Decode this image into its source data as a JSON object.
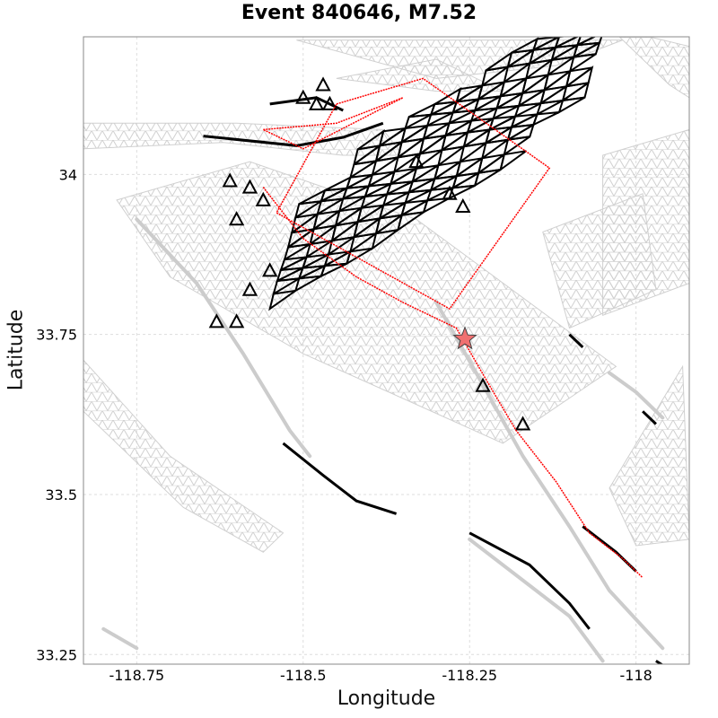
{
  "title": "Event 840646, M7.52",
  "axes": {
    "xlabel": "Longitude",
    "ylabel": "Latitude",
    "xlim": [
      -118.83,
      -117.92
    ],
    "ylim": [
      33.235,
      34.215
    ],
    "xticks": [
      {
        "value": -118.75,
        "label": "-118.75"
      },
      {
        "value": -118.5,
        "label": "-118.5"
      },
      {
        "value": -118.25,
        "label": "-118.25"
      },
      {
        "value": -118.0,
        "label": "-118"
      }
    ],
    "yticks": [
      {
        "value": 34.0,
        "label": "34"
      },
      {
        "value": 33.75,
        "label": "33.75"
      },
      {
        "value": 33.5,
        "label": "33.5"
      },
      {
        "value": 33.25,
        "label": "33.25"
      }
    ],
    "grid": true
  },
  "colors": {
    "mesh": "#d0d0d0",
    "rupture": "#000000",
    "outline": "#ff0000",
    "epicenter": "#f07070"
  },
  "epicenter": {
    "lon": -118.257,
    "lat": 33.743,
    "icon": "star-icon"
  },
  "mesh_patches": [
    [
      [
        -118.51,
        34.21
      ],
      [
        -118.3,
        34.15
      ],
      [
        -118.12,
        34.17
      ],
      [
        -118.02,
        34.21
      ]
    ],
    [
      [
        -118.04,
        34.23
      ],
      [
        -117.95,
        34.14
      ],
      [
        -117.92,
        34.12
      ],
      [
        -117.92,
        34.2
      ]
    ],
    [
      [
        -118.83,
        34.04
      ],
      [
        -118.62,
        34.05
      ],
      [
        -118.44,
        34.03
      ],
      [
        -118.35,
        34.03
      ],
      [
        -118.38,
        34.07
      ],
      [
        -118.6,
        34.08
      ],
      [
        -118.83,
        34.08
      ]
    ],
    [
      [
        -118.78,
        33.96
      ],
      [
        -118.58,
        34.02
      ],
      [
        -118.33,
        33.93
      ],
      [
        -118.03,
        33.7
      ],
      [
        -118.2,
        33.58
      ],
      [
        -118.5,
        33.72
      ],
      [
        -118.7,
        33.84
      ]
    ],
    [
      [
        -118.05,
        34.03
      ],
      [
        -117.92,
        34.07
      ],
      [
        -117.92,
        33.83
      ],
      [
        -118.05,
        33.78
      ]
    ],
    [
      [
        -118.14,
        33.91
      ],
      [
        -117.99,
        33.97
      ],
      [
        -117.97,
        33.82
      ],
      [
        -118.1,
        33.76
      ]
    ],
    [
      [
        -118.83,
        33.63
      ],
      [
        -118.68,
        33.48
      ],
      [
        -118.56,
        33.41
      ],
      [
        -118.53,
        33.44
      ],
      [
        -118.7,
        33.56
      ],
      [
        -118.83,
        33.71
      ]
    ],
    [
      [
        -118.04,
        33.51
      ],
      [
        -117.93,
        33.7
      ],
      [
        -117.92,
        33.43
      ],
      [
        -118.0,
        33.42
      ]
    ],
    [
      [
        -118.45,
        34.15
      ],
      [
        -118.3,
        34.13
      ],
      [
        -118.2,
        34.13
      ],
      [
        -118.3,
        34.18
      ]
    ]
  ],
  "rupture_segments": [
    [
      [
        -118.65,
        34.06
      ],
      [
        -118.51,
        34.045
      ],
      [
        -118.44,
        34.058
      ],
      [
        -118.38,
        34.08
      ]
    ],
    [
      [
        -118.55,
        34.11
      ],
      [
        -118.48,
        34.12
      ],
      [
        -118.44,
        34.1
      ]
    ],
    [
      [
        -118.53,
        33.58
      ],
      [
        -118.47,
        33.53
      ],
      [
        -118.42,
        33.49
      ],
      [
        -118.36,
        33.47
      ]
    ],
    [
      [
        -118.25,
        33.44
      ],
      [
        -118.16,
        33.39
      ],
      [
        -118.1,
        33.33
      ],
      [
        -118.07,
        33.29
      ]
    ],
    [
      [
        -118.08,
        33.45
      ],
      [
        -118.03,
        33.41
      ],
      [
        -118.0,
        33.38
      ]
    ],
    [
      [
        -117.97,
        33.24
      ],
      [
        -117.94,
        33.22
      ]
    ],
    [
      [
        -118.1,
        33.75
      ],
      [
        -118.08,
        33.73
      ]
    ],
    [
      [
        -117.99,
        33.63
      ],
      [
        -117.97,
        33.61
      ]
    ]
  ],
  "gray_traces": [
    [
      [
        -118.75,
        33.93
      ],
      [
        -118.66,
        33.83
      ],
      [
        -118.59,
        33.72
      ],
      [
        -118.52,
        33.6
      ],
      [
        -118.49,
        33.56
      ]
    ],
    [
      [
        -118.3,
        33.8
      ],
      [
        -118.24,
        33.69
      ],
      [
        -118.17,
        33.56
      ],
      [
        -118.1,
        33.45
      ],
      [
        -118.04,
        33.35
      ],
      [
        -117.96,
        33.26
      ]
    ],
    [
      [
        -118.04,
        33.69
      ],
      [
        -118.0,
        33.66
      ],
      [
        -117.96,
        33.62
      ]
    ],
    [
      [
        -118.8,
        33.29
      ],
      [
        -118.75,
        33.26
      ]
    ],
    [
      [
        -118.25,
        33.43
      ],
      [
        -118.1,
        33.31
      ],
      [
        -118.05,
        33.24
      ]
    ]
  ],
  "rupture_patch": {
    "cols": 12,
    "rows": 10,
    "origin": [
      -118.55,
      33.79
    ],
    "u": [
      0.0385,
      0.0245
    ],
    "v": [
      0.0055,
      0.02
    ]
  },
  "red_outlines": [
    [
      [
        -118.45,
        34.11
      ],
      [
        -118.32,
        34.15
      ],
      [
        -118.13,
        34.01
      ],
      [
        -118.28,
        33.79
      ],
      [
        -118.54,
        33.94
      ]
    ],
    [
      [
        -118.56,
        34.07
      ],
      [
        -118.45,
        34.08
      ],
      [
        -118.35,
        34.12
      ],
      [
        -118.5,
        34.04
      ]
    ]
  ],
  "red_trace": [
    [
      -118.56,
      33.98
    ],
    [
      -118.5,
      33.9
    ],
    [
      -118.42,
      33.84
    ],
    [
      -118.35,
      33.8
    ],
    [
      -118.27,
      33.76
    ],
    [
      -118.22,
      33.67
    ],
    [
      -118.18,
      33.6
    ],
    [
      -118.12,
      33.52
    ],
    [
      -118.07,
      33.44
    ],
    [
      -118.02,
      33.4
    ],
    [
      -117.99,
      33.37
    ]
  ],
  "scattered_triangles": [
    [
      -118.61,
      33.99
    ],
    [
      -118.58,
      33.98
    ],
    [
      -118.6,
      33.93
    ],
    [
      -118.56,
      33.96
    ],
    [
      -118.63,
      33.77
    ],
    [
      -118.6,
      33.77
    ],
    [
      -118.55,
      33.85
    ],
    [
      -118.58,
      33.82
    ],
    [
      -118.23,
      33.67
    ],
    [
      -118.17,
      33.61
    ],
    [
      -118.46,
      34.11
    ],
    [
      -118.48,
      34.11
    ],
    [
      -118.5,
      34.12
    ],
    [
      -118.47,
      34.14
    ],
    [
      -118.33,
      34.02
    ],
    [
      -118.28,
      33.97
    ],
    [
      -118.26,
      33.95
    ]
  ]
}
